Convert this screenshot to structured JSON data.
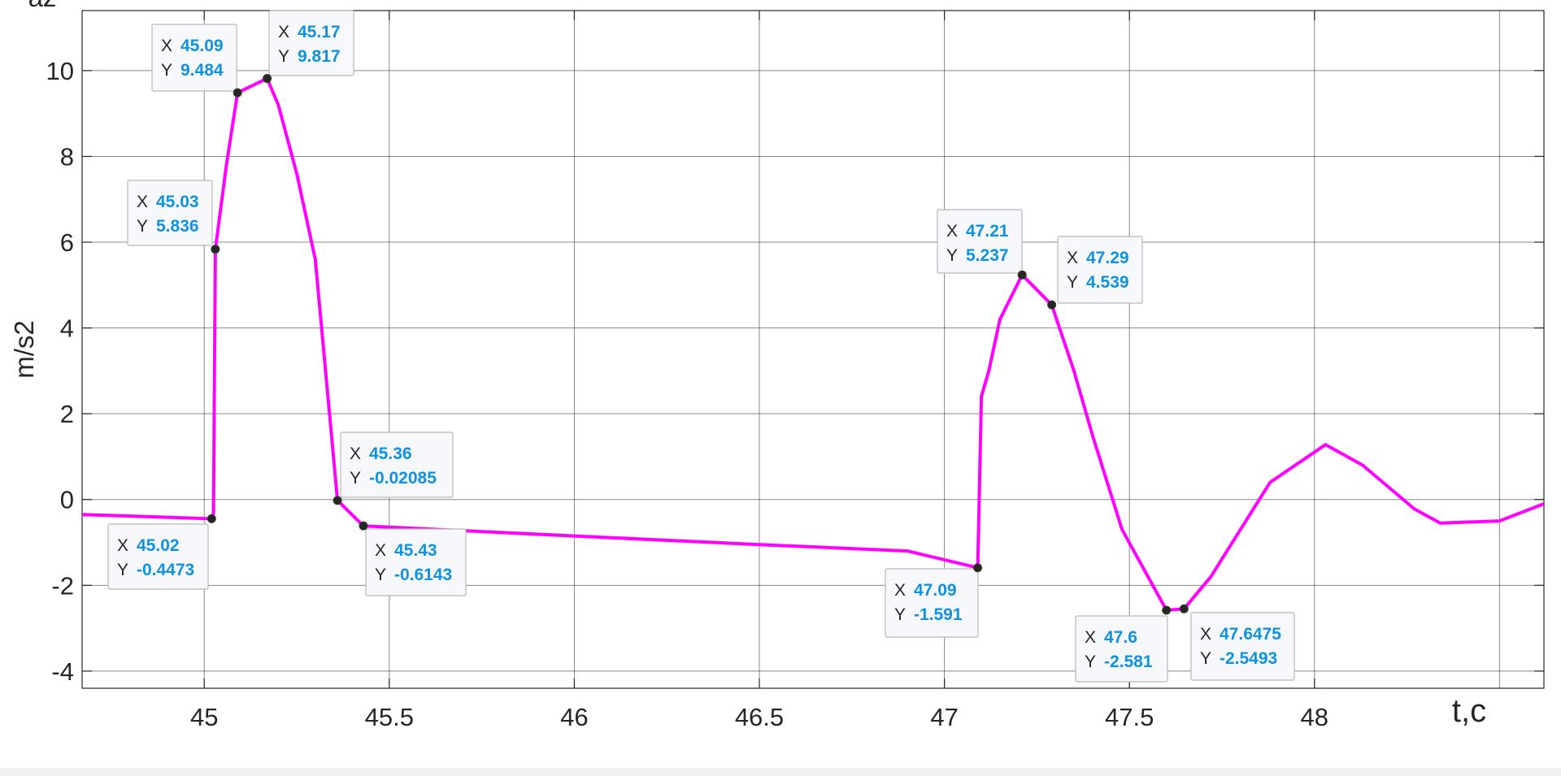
{
  "chart_data": {
    "type": "line",
    "title": "az",
    "xlabel": "t,c",
    "ylabel": "m/s2",
    "xlim": [
      44.67,
      48.62
    ],
    "ylim": [
      -4.4,
      11.4
    ],
    "grid": true,
    "line_color": "#ff00ff",
    "marker_color": "#262626",
    "tooltip_value_color": "#0f92df",
    "x_ticks": [
      45,
      45.5,
      46,
      46.5,
      47,
      47.5,
      48
    ],
    "x_tick_labels": [
      "45",
      "45.5",
      "46",
      "46.5",
      "47",
      "47.5",
      "48"
    ],
    "y_ticks": [
      -4,
      -2,
      0,
      2,
      4,
      6,
      8,
      10
    ],
    "y_tick_labels": [
      "-4",
      "-2",
      "0",
      "2",
      "4",
      "6",
      "8",
      "10"
    ],
    "series": [
      {
        "x": [
          44.67,
          45.02,
          45.025,
          45.03,
          45.06,
          45.09,
          45.17,
          45.2,
          45.25,
          45.3,
          45.36,
          45.43,
          46.0,
          46.5,
          46.9,
          47.09,
          47.1,
          47.12,
          47.15,
          47.21,
          47.29,
          47.35,
          47.4,
          47.48,
          47.6,
          47.6475,
          47.72,
          47.88,
          48.03,
          48.13,
          48.27,
          48.34,
          48.5,
          48.62
        ],
        "y": [
          -0.35,
          -0.4473,
          -0.3,
          5.836,
          7.8,
          9.484,
          9.817,
          9.2,
          7.6,
          5.6,
          -0.02085,
          -0.6143,
          -0.85,
          -1.05,
          -1.2,
          -1.591,
          2.4,
          3.0,
          4.2,
          5.237,
          4.539,
          3.0,
          1.5,
          -0.7,
          -2.581,
          -2.5493,
          -1.8,
          0.4,
          1.28,
          0.8,
          -0.22,
          -0.55,
          -0.5,
          -0.1
        ]
      }
    ],
    "data_tips": [
      {
        "x": "45.02",
        "y": "-0.4473"
      },
      {
        "x": "45.03",
        "y": "5.836"
      },
      {
        "x": "45.09",
        "y": "9.484"
      },
      {
        "x": "45.17",
        "y": "9.817"
      },
      {
        "x": "45.36",
        "y": "-0.02085"
      },
      {
        "x": "45.43",
        "y": "-0.6143"
      },
      {
        "x": "47.09",
        "y": "-1.591"
      },
      {
        "x": "47.21",
        "y": "5.237"
      },
      {
        "x": "47.29",
        "y": "4.539"
      },
      {
        "x": "47.6",
        "y": "-2.581"
      },
      {
        "x": "47.6475",
        "y": "-2.5493"
      }
    ],
    "data_tip_x_key": "X",
    "data_tip_y_key": "Y"
  }
}
